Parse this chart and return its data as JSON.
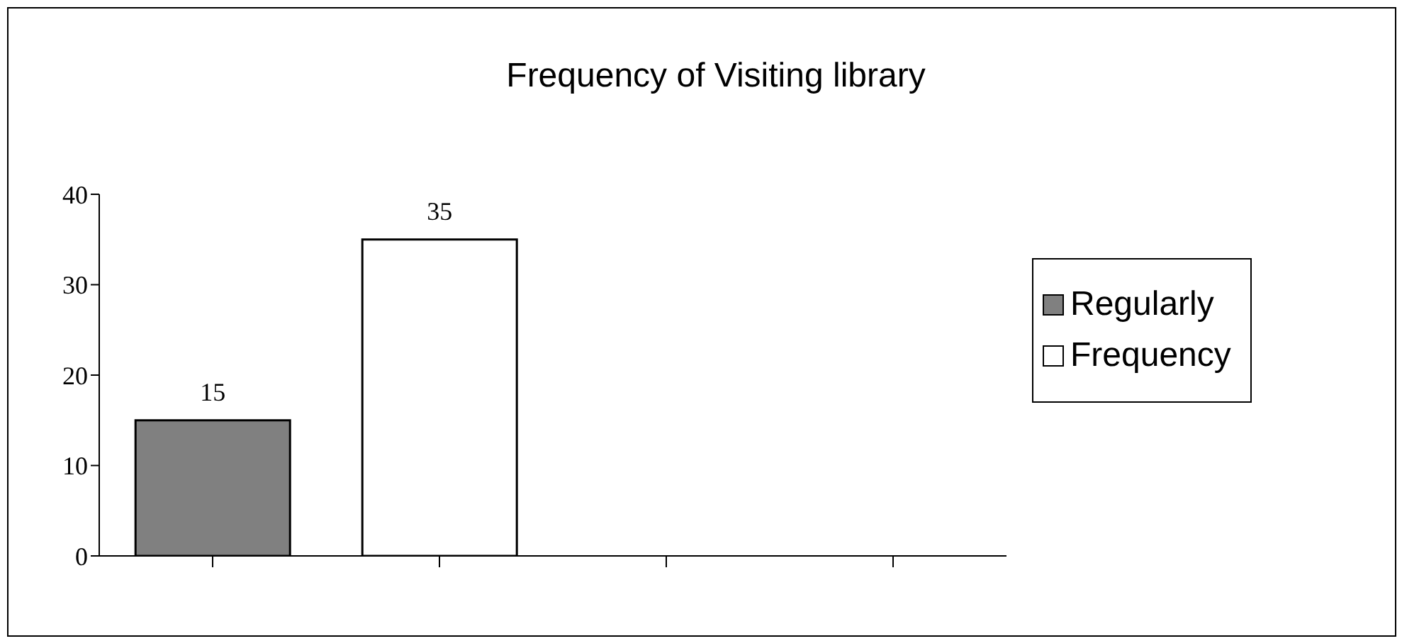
{
  "chart_data": {
    "type": "bar",
    "title": "Frequency of Visiting library",
    "categories": [
      null,
      null,
      null,
      null
    ],
    "series": [
      {
        "name": "Regularly",
        "color": "#808080",
        "values": [
          15,
          null,
          null,
          null
        ]
      },
      {
        "name": "Frequency",
        "color": "#ffffff",
        "values": [
          null,
          35,
          null,
          null
        ]
      }
    ],
    "ylim": [
      0,
      40
    ],
    "yticks": [
      0,
      10,
      20,
      30,
      40
    ],
    "legend": "right",
    "data_labels": true
  }
}
